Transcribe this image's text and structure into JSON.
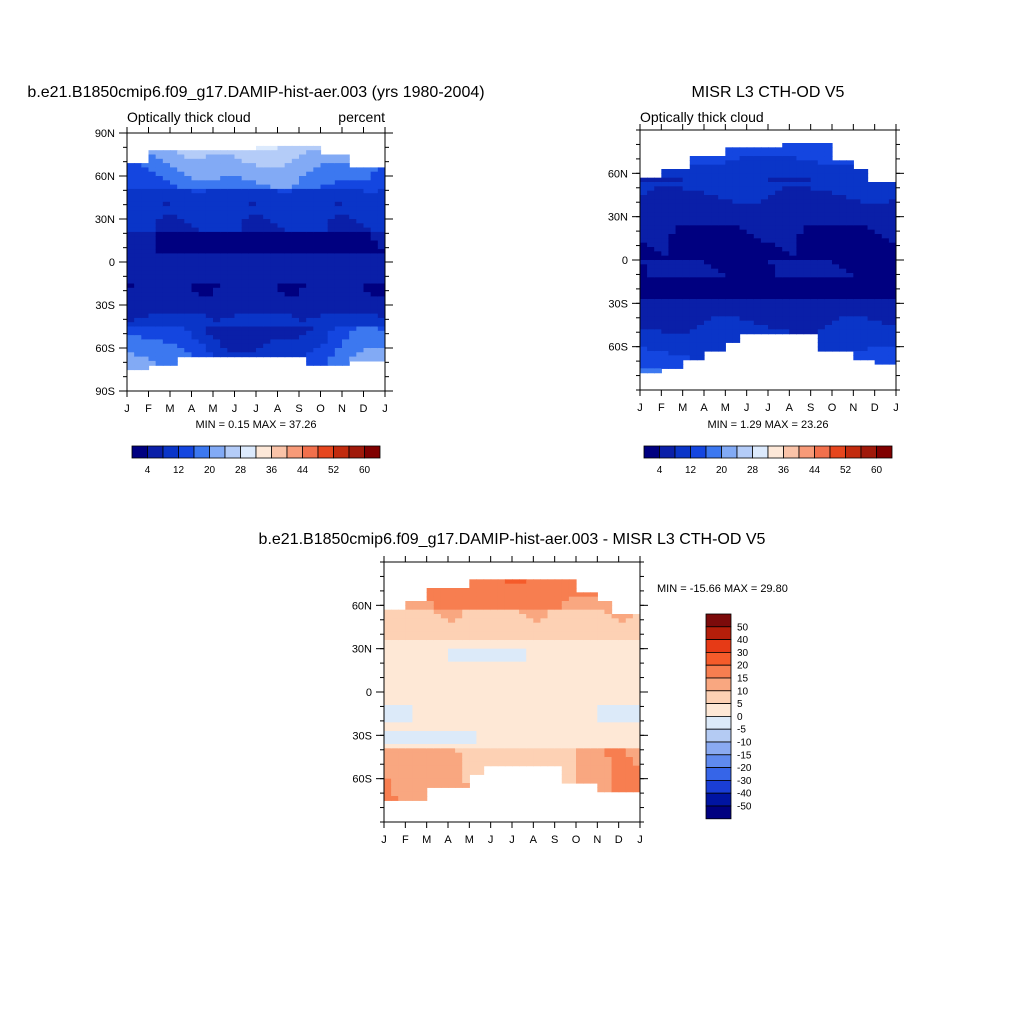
{
  "chart_data": [
    {
      "type": "heatmap",
      "title": "b.e21.B1850cmip6.f09_g17.DAMIP-hist-aer.003 (yrs 1980-2004)",
      "left_subtitle": "Optically thick cloud",
      "right_subtitle": "percent",
      "x_ticks": [
        "J",
        "F",
        "M",
        "A",
        "M",
        "J",
        "J",
        "A",
        "S",
        "O",
        "N",
        "D",
        "J"
      ],
      "y_ticks": [
        "90N",
        "60N",
        "30N",
        "0",
        "30S",
        "60S",
        "90S"
      ],
      "ylim": [
        -90,
        90
      ],
      "stats": "MIN =   0.15 MAX =  37.26",
      "min": 0.15,
      "max": 37.26,
      "colorbar": {
        "orientation": "horizontal",
        "labels": [
          "4",
          "12",
          "20",
          "28",
          "36",
          "44",
          "52",
          "60"
        ]
      }
    },
    {
      "type": "heatmap",
      "title": "MISR L3 CTH-OD V5",
      "left_subtitle": "Optically thick cloud",
      "x_ticks": [
        "J",
        "F",
        "M",
        "A",
        "M",
        "J",
        "J",
        "A",
        "S",
        "O",
        "N",
        "D",
        "J"
      ],
      "y_ticks": [
        "60N",
        "30N",
        "0",
        "30S",
        "60S"
      ],
      "ylim": [
        -90,
        90
      ],
      "stats": "MIN =   1.29 MAX =  23.26",
      "min": 1.29,
      "max": 23.26,
      "colorbar": {
        "orientation": "horizontal",
        "labels": [
          "4",
          "12",
          "20",
          "28",
          "36",
          "44",
          "52",
          "60"
        ]
      }
    },
    {
      "type": "heatmap",
      "title": "b.e21.B1850cmip6.f09_g17.DAMIP-hist-aer.003 - MISR L3 CTH-OD V5",
      "x_ticks": [
        "J",
        "F",
        "M",
        "A",
        "M",
        "J",
        "J",
        "A",
        "S",
        "O",
        "N",
        "D",
        "J"
      ],
      "y_ticks": [
        "60N",
        "30N",
        "0",
        "30S",
        "60S"
      ],
      "ylim": [
        -90,
        90
      ],
      "stats": "MIN = -15.66 MAX =  29.80",
      "min": -15.66,
      "max": 29.8,
      "colorbar": {
        "orientation": "vertical",
        "labels": [
          "50",
          "40",
          "30",
          "20",
          "15",
          "10",
          "5",
          "0",
          "-5",
          "-10",
          "-15",
          "-20",
          "-30",
          "-40",
          "-50"
        ]
      }
    }
  ],
  "colors": {
    "sequential": [
      "#000080",
      "#0a1fa8",
      "#0a35c8",
      "#1446e0",
      "#3c78f0",
      "#82aaf5",
      "#b4ccf8",
      "#dceafd",
      "#fde8d8",
      "#fac3a8",
      "#f79a78",
      "#f2704c",
      "#e6461e",
      "#c22b0e",
      "#a0190a",
      "#800000"
    ],
    "diverging": [
      "#7c0b0b",
      "#b41e0a",
      "#e63a16",
      "#f55b2a",
      "#f77e50",
      "#f9a780",
      "#fdd1b4",
      "#fee8d6",
      "#dceaf9",
      "#b4cbf3",
      "#8aaaf1",
      "#5f8aef",
      "#3665e8",
      "#1a3ed6",
      "#0014a2",
      "#000080"
    ],
    "missing": "#ffffff"
  }
}
